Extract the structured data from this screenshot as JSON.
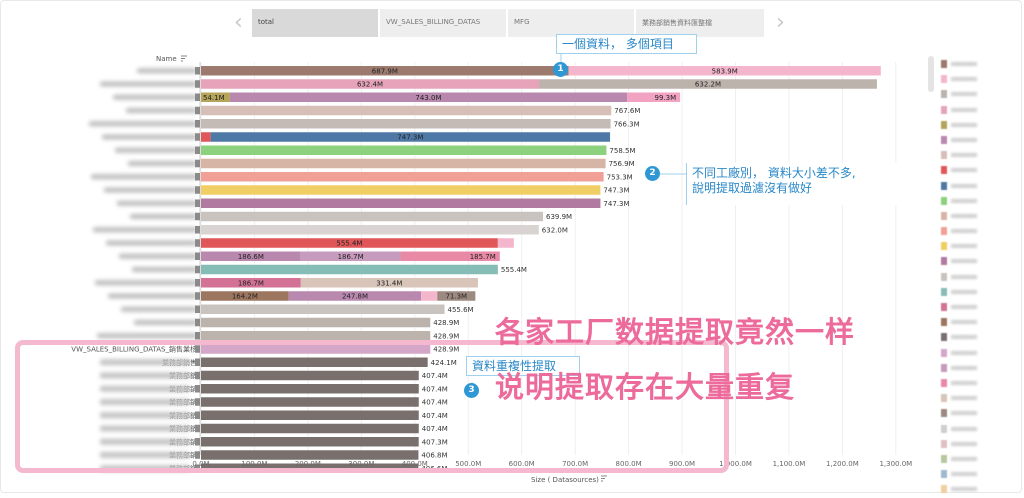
{
  "tabs": [
    {
      "label": "total"
    },
    {
      "label": "VW_SALES_BILLING_DATAS"
    },
    {
      "label": "MFG"
    },
    {
      "label": "業務部銷售資料匯整檔"
    }
  ],
  "nav": {
    "prev_icon": "chevron-left-icon",
    "next_icon": "chevron-right-icon"
  },
  "chart_data": {
    "type": "bar",
    "orientation": "horizontal-stacked",
    "ylabel": "Name",
    "xlabel": "Size ( Datasources)",
    "xlim": [
      0,
      1300
    ],
    "xticks": [
      "0.0M",
      "100.0M",
      "200.0M",
      "300.0M",
      "400.0M",
      "500.0M",
      "600.0M",
      "700.0M",
      "800.0M",
      "900.0M",
      "1,000.0M",
      "1,100.0M",
      "1,200.0M",
      "1,300.0M"
    ],
    "tick_values": [
      0,
      100,
      200,
      300,
      400,
      500,
      600,
      700,
      800,
      900,
      1000,
      1100,
      1200,
      1300
    ],
    "rows": [
      {
        "label": "",
        "segments": [
          {
            "v": 687.9,
            "label": "687.9M",
            "color": "#9c7b6e"
          },
          {
            "v": 583.9,
            "label": "583.9M",
            "color": "#f4b6cc"
          }
        ]
      },
      {
        "label": "",
        "segments": [
          {
            "v": 632.4,
            "label": "632.4M",
            "color": "#e6a3ba"
          },
          {
            "v": 632.2,
            "label": "632.2M",
            "color": "#bdb3ad"
          }
        ]
      },
      {
        "label": "",
        "segments": [
          {
            "v": 54.1,
            "label": "54.1M",
            "color": "#b5a55a"
          },
          {
            "v": 743.0,
            "label": "743.0M",
            "color": "#b888ae"
          },
          {
            "v": 99.3,
            "label": "99.3M",
            "color": "#f2a3c2"
          }
        ]
      },
      {
        "label": "",
        "segments": [
          {
            "v": 767.6,
            "label": "767.6M",
            "color": "#d6bfb6"
          }
        ]
      },
      {
        "label": "",
        "segments": [
          {
            "v": 766.3,
            "label": "766.3M",
            "color": "#c5bbb6"
          }
        ]
      },
      {
        "label": "",
        "segments": [
          {
            "v": 18,
            "label": "",
            "color": "#e15759"
          },
          {
            "v": 747.3,
            "label": "747.3M",
            "color": "#4e79a7"
          }
        ]
      },
      {
        "label": "",
        "segments": [
          {
            "v": 758.5,
            "label": "758.5M",
            "color": "#8cd17d"
          }
        ]
      },
      {
        "label": "",
        "segments": [
          {
            "v": 756.9,
            "label": "756.9M",
            "color": "#d7b5a6"
          }
        ]
      },
      {
        "label": "",
        "segments": [
          {
            "v": 753.3,
            "label": "753.3M",
            "color": "#f1a097"
          }
        ]
      },
      {
        "label": "",
        "segments": [
          {
            "v": 747.3,
            "label": "747.3M",
            "color": "#f1ce63"
          }
        ]
      },
      {
        "label": "",
        "segments": [
          {
            "v": 747.3,
            "label": "747.3M",
            "color": "#b07aa1"
          }
        ]
      },
      {
        "label": "",
        "segments": [
          {
            "v": 639.9,
            "label": "639.9M",
            "color": "#c9c3c0"
          }
        ]
      },
      {
        "label": "",
        "segments": [
          {
            "v": 632.0,
            "label": "632.0M",
            "color": "#d9d4d1"
          }
        ]
      },
      {
        "label": "",
        "segments": [
          {
            "v": 555.4,
            "label": "555.4M",
            "color": "#e15759"
          },
          {
            "v": 30,
            "label": "",
            "color": "#f4b6cc"
          }
        ]
      },
      {
        "label": "",
        "segments": [
          {
            "v": 186.6,
            "label": "186.6M",
            "color": "#b888ae"
          },
          {
            "v": 186.7,
            "label": "186.7M",
            "color": "#c79bbd"
          },
          {
            "v": 185.7,
            "label": "185.7M",
            "color": "#e88aa6"
          }
        ]
      },
      {
        "label": "",
        "segments": [
          {
            "v": 555.4,
            "label": "555.4M",
            "color": "#86bcb6"
          }
        ]
      },
      {
        "label": "",
        "segments": [
          {
            "v": 186.7,
            "label": "186.7M",
            "color": "#d37295"
          },
          {
            "v": 331.4,
            "label": "331.4M",
            "color": "#d8c4b8"
          }
        ]
      },
      {
        "label": "",
        "segments": [
          {
            "v": 164.2,
            "label": "164.2M",
            "color": "#9d7660"
          },
          {
            "v": 247.8,
            "label": "247.8M",
            "color": "#b888ae"
          },
          {
            "v": 30,
            "label": "",
            "color": "#f4b6cc"
          },
          {
            "v": 71.3,
            "label": "71.3M",
            "color": "#9c8a80"
          }
        ]
      },
      {
        "label": "",
        "segments": [
          {
            "v": 455.6,
            "label": "455.6M",
            "color": "#c9c3c0"
          }
        ]
      },
      {
        "label": "",
        "segments": [
          {
            "v": 428.9,
            "label": "428.9M",
            "color": "#bdb3ad"
          }
        ]
      },
      {
        "label": "",
        "segments": [
          {
            "v": 428.9,
            "label": "428.9M",
            "color": "#bdb3ad"
          }
        ]
      },
      {
        "label": "VW_SALES_BILLING_DATAS_銷售業核",
        "segments": [
          {
            "v": 428.9,
            "label": "428.9M",
            "color": "#d4a6c8"
          }
        ]
      },
      {
        "label": "業務部銷售",
        "segments": [
          {
            "v": 424.1,
            "label": "424.1M",
            "color": "#79706e"
          }
        ]
      },
      {
        "label": "業務部銷",
        "segments": [
          {
            "v": 407.4,
            "label": "407.4M",
            "color": "#79706e"
          }
        ]
      },
      {
        "label": "業務部銷",
        "segments": [
          {
            "v": 407.4,
            "label": "407.4M",
            "color": "#79706e"
          }
        ]
      },
      {
        "label": "業務部銷",
        "segments": [
          {
            "v": 407.4,
            "label": "407.4M",
            "color": "#79706e"
          }
        ]
      },
      {
        "label": "業務部銷",
        "segments": [
          {
            "v": 407.4,
            "label": "407.4M",
            "color": "#79706e"
          }
        ]
      },
      {
        "label": "業務部銷",
        "segments": [
          {
            "v": 407.4,
            "label": "407.4M",
            "color": "#79706e"
          }
        ]
      },
      {
        "label": "業務部銷",
        "segments": [
          {
            "v": 407.3,
            "label": "407.3M",
            "color": "#79706e"
          }
        ]
      },
      {
        "label": "業務部銷",
        "segments": [
          {
            "v": 406.8,
            "label": "406.8M",
            "color": "#79706e"
          }
        ]
      },
      {
        "label": "業務部銷",
        "segments": [
          {
            "v": 406.6,
            "label": "406.6M",
            "color": "#79706e"
          }
        ]
      }
    ]
  },
  "legend_colors": [
    "#9c7b6e",
    "#f4b6cc",
    "#bdb3ad",
    "#e6a3ba",
    "#b5a55a",
    "#b888ae",
    "#d6bfb6",
    "#e15759",
    "#4e79a7",
    "#8cd17d",
    "#d7b5a6",
    "#f1a097",
    "#f1ce63",
    "#b07aa1",
    "#c9c3c0",
    "#86bcb6",
    "#d37295",
    "#9d7660",
    "#79706e",
    "#d4a6c8",
    "#c79bbd",
    "#e88aa6",
    "#d8c4b8",
    "#9c8a80",
    "#cfcfcf",
    "#e0c0c0",
    "#b5c8a0",
    "#a0b8d0",
    "#f0d0a0"
  ],
  "annotations": {
    "a1_badge": "1",
    "a1_text": "一個資料， 多個項目",
    "a2_badge": "2",
    "a2_line1": "不同工廠別， 資料大小差不多,",
    "a2_line2": "說明提取過濾沒有做好",
    "a3_badge": "3",
    "a3_text": "資料重複性提取",
    "big_line1": "各家工厂数据提取竟然一样",
    "big_line2": "说明提取存在大量重复"
  }
}
